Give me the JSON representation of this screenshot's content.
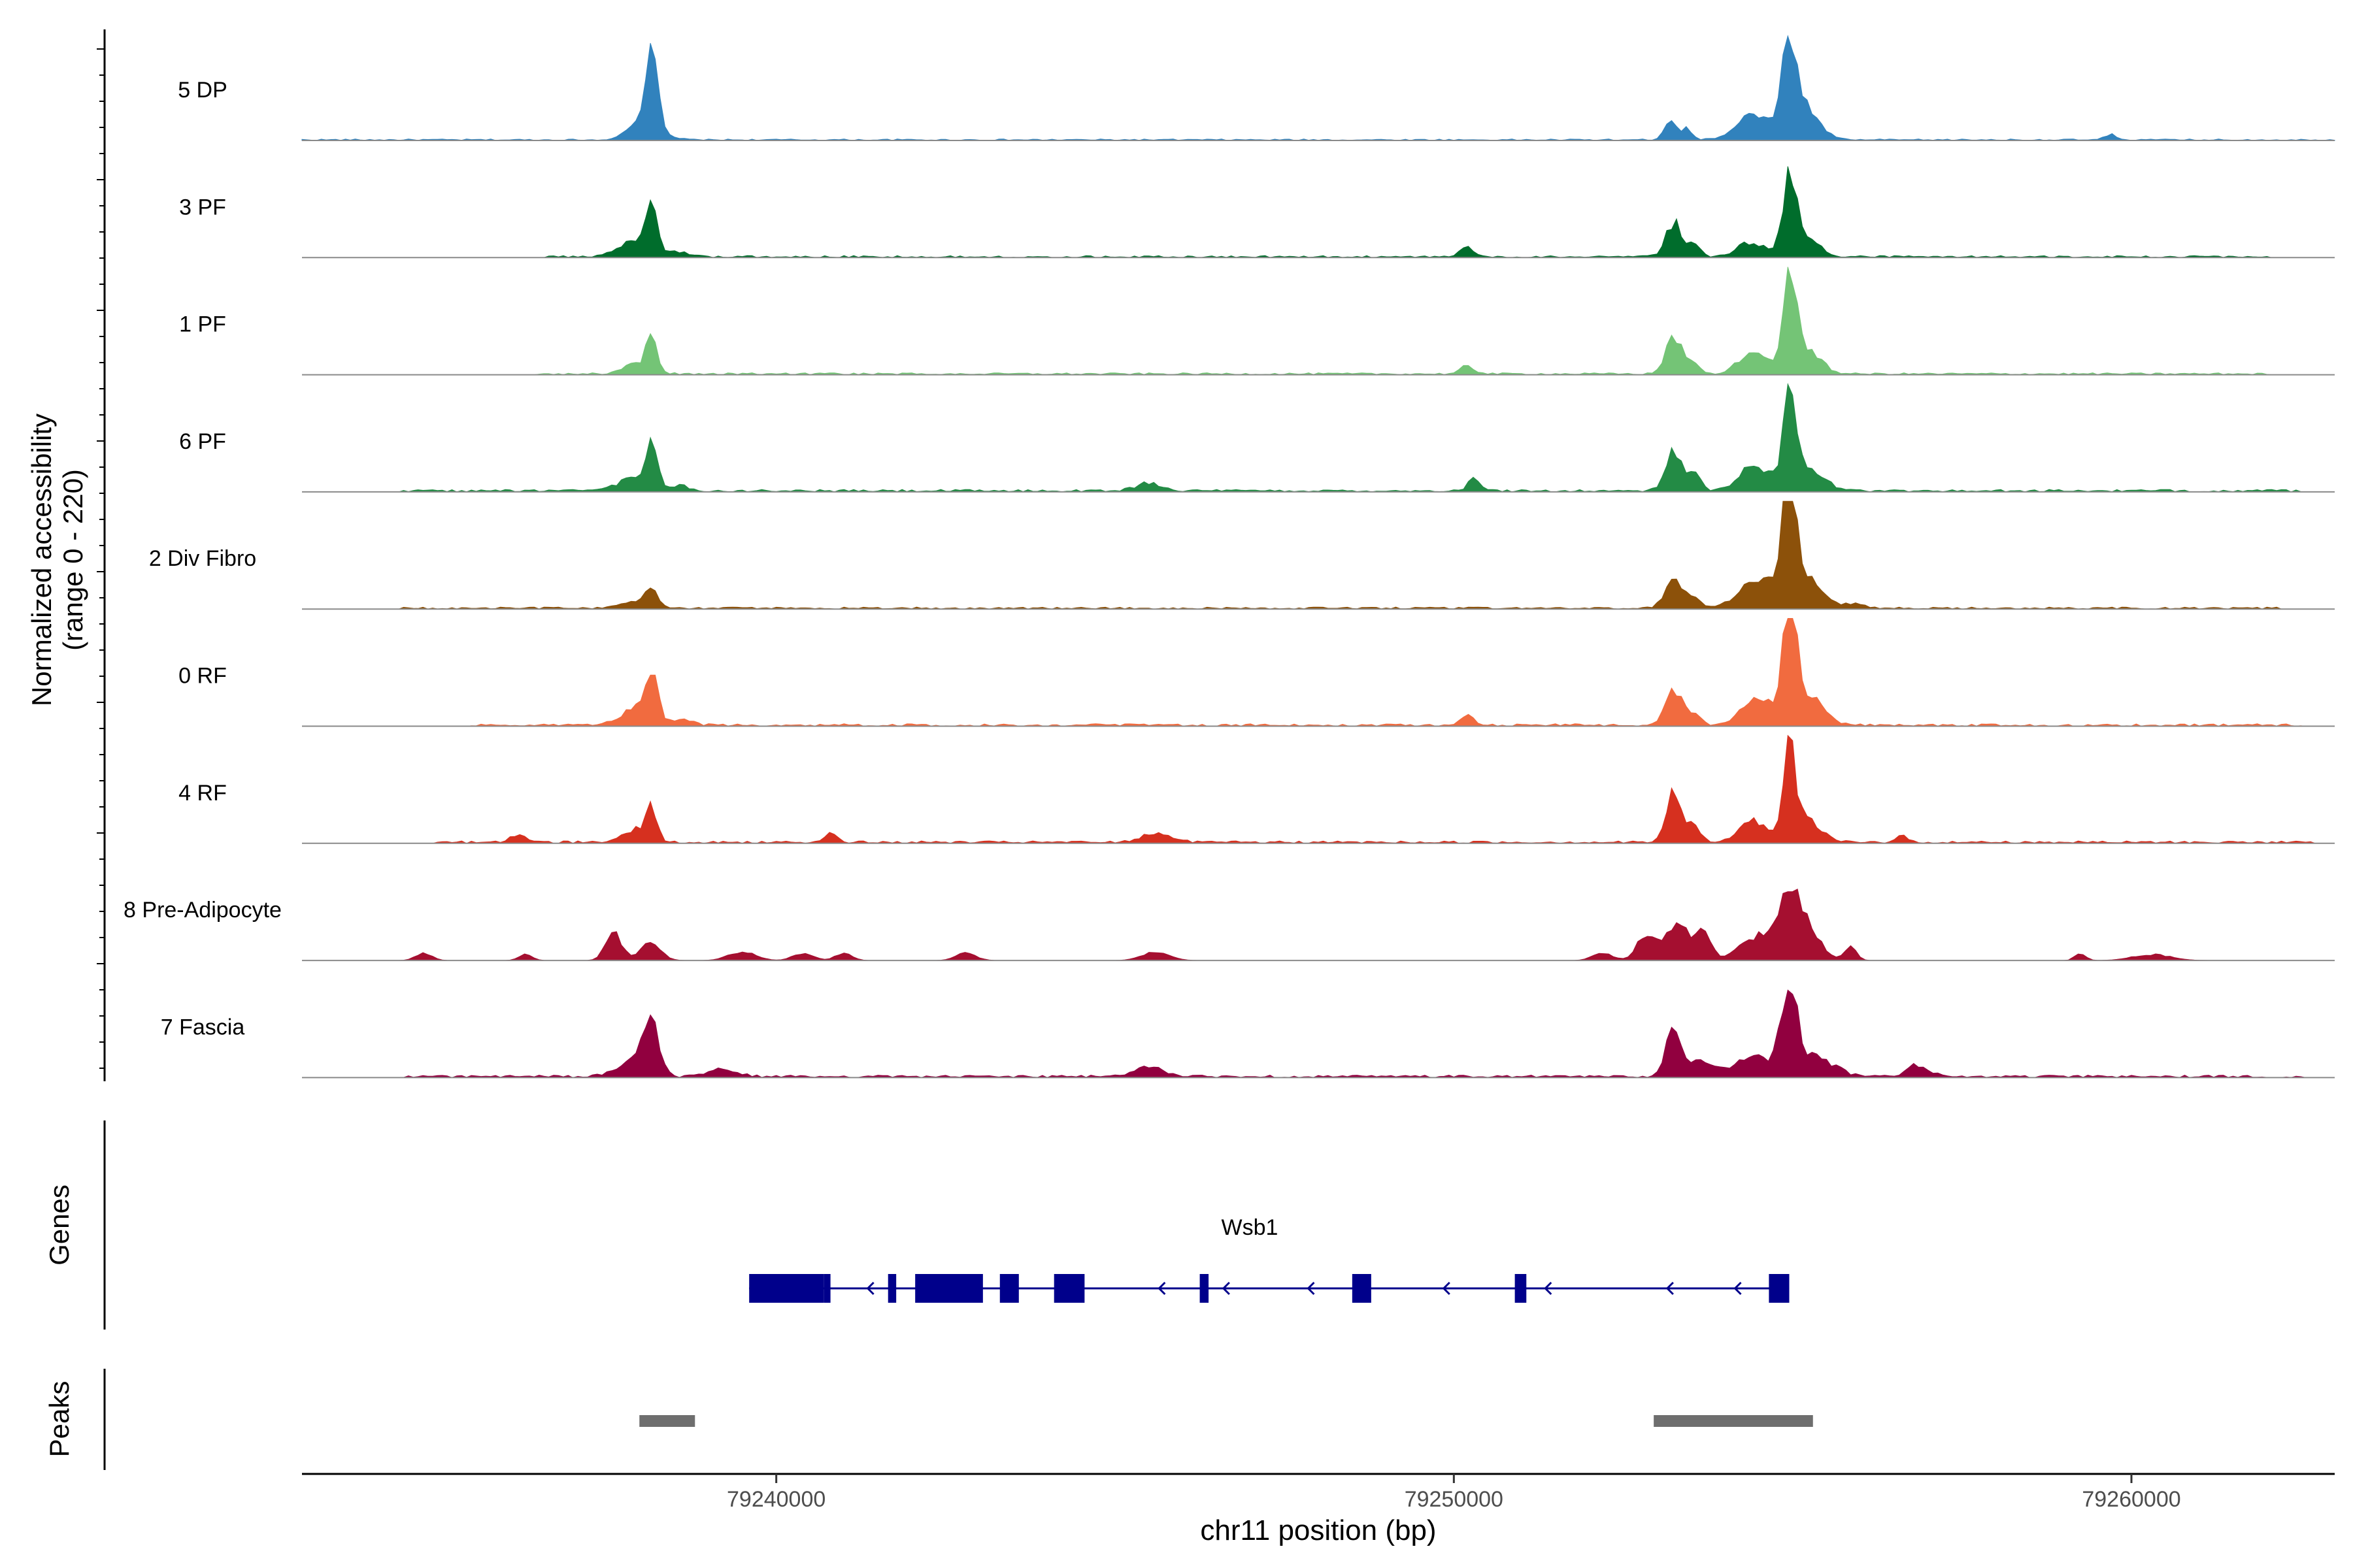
{
  "chart_data": {
    "type": "area",
    "title": "",
    "ylabel_line1": "Normalized accessibility",
    "ylabel_line2": "(range 0 - 220)",
    "ylim": [
      0,
      220
    ],
    "xlabel": "chr11 position (bp)",
    "xlim": [
      79233000,
      79263000
    ],
    "x_ticks": [
      79240000,
      79250000,
      79260000
    ],
    "x_tick_labels": [
      "79240000",
      "79250000",
      "79260000"
    ],
    "tracks": [
      {
        "name": "5 DP",
        "color": "#3182bd",
        "peaks": [
          [
            79238160,
            175,
            80
          ],
          [
            79238070,
            40,
            220
          ],
          [
            79253200,
            45,
            90
          ],
          [
            79253450,
            25,
            70
          ],
          [
            79254450,
            55,
            260
          ],
          [
            79254950,
            170,
            100
          ],
          [
            79255150,
            70,
            220
          ],
          [
            79259700,
            10,
            90
          ]
        ],
        "noise": 3,
        "noise_ranges": [
          [
            79233000,
            79263000
          ]
        ]
      },
      {
        "name": "3 PF",
        "color": "#006d2c",
        "peaks": [
          [
            79238160,
            85,
            80
          ],
          [
            79237950,
            35,
            250
          ],
          [
            79238600,
            8,
            150
          ],
          [
            79250200,
            20,
            110
          ],
          [
            79253250,
            70,
            120
          ],
          [
            79253550,
            25,
            90
          ],
          [
            79254400,
            30,
            200
          ],
          [
            79254950,
            150,
            90
          ],
          [
            79255150,
            50,
            200
          ]
        ],
        "noise": 4,
        "noise_ranges": [
          [
            79236500,
            79262000
          ]
        ]
      },
      {
        "name": "1 PF",
        "color": "#74c476",
        "peaks": [
          [
            79238160,
            65,
            80
          ],
          [
            79237950,
            20,
            200
          ],
          [
            79250200,
            15,
            110
          ],
          [
            79253250,
            75,
            120
          ],
          [
            79253550,
            20,
            90
          ],
          [
            79254400,
            45,
            200
          ],
          [
            79254950,
            185,
            90
          ],
          [
            79255150,
            60,
            220
          ]
        ],
        "noise": 4,
        "noise_ranges": [
          [
            79236500,
            79262000
          ]
        ]
      },
      {
        "name": "6 PF",
        "color": "#238b45",
        "peaks": [
          [
            79238160,
            110,
            80
          ],
          [
            79237900,
            30,
            220
          ],
          [
            79238600,
            10,
            150
          ],
          [
            79245500,
            15,
            200
          ],
          [
            79250300,
            25,
            90
          ],
          [
            79253250,
            80,
            120
          ],
          [
            79253550,
            35,
            100
          ],
          [
            79254400,
            55,
            200
          ],
          [
            79254950,
            190,
            90
          ],
          [
            79255150,
            55,
            260
          ]
        ],
        "noise": 5,
        "noise_ranges": [
          [
            79234500,
            79262500
          ]
        ]
      },
      {
        "name": "2 Div Fibro",
        "color": "#8c510a",
        "peaks": [
          [
            79238160,
            40,
            90
          ],
          [
            79237900,
            15,
            200
          ],
          [
            79253250,
            70,
            120
          ],
          [
            79253550,
            25,
            90
          ],
          [
            79254450,
            60,
            250
          ],
          [
            79254950,
            215,
            100
          ],
          [
            79255150,
            70,
            250
          ],
          [
            79255900,
            10,
            150
          ]
        ],
        "noise": 4,
        "noise_ranges": [
          [
            79234500,
            79262200
          ]
        ]
      },
      {
        "name": "0 RF",
        "color": "#f16b3f",
        "peaks": [
          [
            79238150,
            100,
            90
          ],
          [
            79237950,
            35,
            220
          ],
          [
            79238600,
            12,
            150
          ],
          [
            79250200,
            20,
            100
          ],
          [
            79253250,
            70,
            120
          ],
          [
            79253550,
            25,
            90
          ],
          [
            79254450,
            50,
            230
          ],
          [
            79254950,
            205,
            100
          ],
          [
            79255150,
            70,
            250
          ]
        ],
        "noise": 5,
        "noise_ranges": [
          [
            79235500,
            79262500
          ]
        ]
      },
      {
        "name": "4 RF",
        "color": "#d6301f",
        "peaks": [
          [
            79238160,
            75,
            80
          ],
          [
            79237900,
            25,
            180
          ],
          [
            79236200,
            15,
            120
          ],
          [
            79240800,
            20,
            90
          ],
          [
            79245600,
            20,
            200
          ],
          [
            79253250,
            105,
            110
          ],
          [
            79253550,
            35,
            90
          ],
          [
            79254400,
            45,
            200
          ],
          [
            79254950,
            165,
            90
          ],
          [
            79255150,
            55,
            220
          ],
          [
            79256600,
            15,
            80
          ]
        ],
        "noise": 5,
        "noise_ranges": [
          [
            79235000,
            79262700
          ]
        ]
      },
      {
        "name": "8 Pre-Adipocyte",
        "color": "#a50f30",
        "peaks": [
          [
            79234800,
            15,
            120
          ],
          [
            79236300,
            12,
            100
          ],
          [
            79237600,
            55,
            120
          ],
          [
            79238150,
            35,
            150
          ],
          [
            79239500,
            18,
            200
          ],
          [
            79240400,
            15,
            150
          ],
          [
            79241000,
            15,
            120
          ],
          [
            79242800,
            15,
            150
          ],
          [
            79245600,
            18,
            200
          ],
          [
            79252200,
            15,
            150
          ],
          [
            79252800,
            45,
            120
          ],
          [
            79253300,
            70,
            230
          ],
          [
            79253700,
            45,
            100
          ],
          [
            79254500,
            50,
            260
          ],
          [
            79254950,
            140,
            150
          ],
          [
            79255250,
            55,
            180
          ],
          [
            79255850,
            30,
            90
          ],
          [
            79259250,
            15,
            80
          ],
          [
            79260300,
            12,
            280
          ]
        ],
        "noise": 0,
        "noise_ranges": []
      },
      {
        "name": "7 Fascia",
        "color": "#91003f",
        "peaks": [
          [
            79238150,
            110,
            110
          ],
          [
            79237900,
            35,
            220
          ],
          [
            79239200,
            15,
            200
          ],
          [
            79245500,
            20,
            220
          ],
          [
            79253250,
            95,
            120
          ],
          [
            79253700,
            30,
            200
          ],
          [
            79254450,
            45,
            250
          ],
          [
            79254950,
            195,
            110
          ],
          [
            79255300,
            45,
            280
          ],
          [
            79256850,
            25,
            150
          ]
        ],
        "noise": 5,
        "noise_ranges": [
          [
            79234500,
            79262500
          ]
        ]
      }
    ],
    "genes": {
      "label": "Genes",
      "gene_name": "Wsb1",
      "color": "#00008b",
      "strand": "-",
      "start": 79239600,
      "end": 79254950,
      "exons": [
        [
          79239600,
          79240700
        ],
        [
          79240700,
          79240800
        ],
        [
          79241650,
          79241770
        ],
        [
          79242050,
          79243050
        ],
        [
          79243300,
          79243580
        ],
        [
          79244100,
          79244550
        ],
        [
          79246250,
          79246380
        ],
        [
          79248500,
          79248780
        ],
        [
          79250900,
          79251070
        ],
        [
          79254650,
          79254950
        ]
      ],
      "arrow_positions": [
        79241350,
        79245650,
        79246600,
        79247850,
        79249850,
        79251350,
        79253150,
        79254150
      ]
    },
    "peaks": {
      "label": "Peaks",
      "color": "#6e6e6e",
      "regions": [
        [
          79237980,
          79238800
        ],
        [
          79252950,
          79255300
        ]
      ]
    }
  }
}
